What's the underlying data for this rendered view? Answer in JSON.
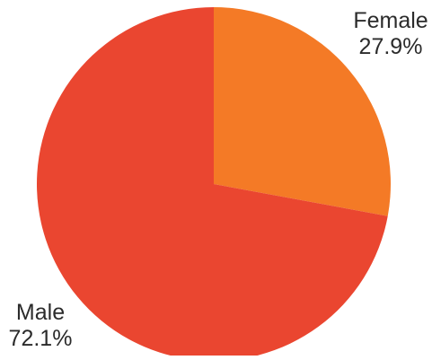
{
  "chart_data": {
    "type": "pie",
    "slices": [
      {
        "label": "Female",
        "value": 27.9,
        "value_label": "27.9%",
        "color": "#f47a26"
      },
      {
        "label": "Male",
        "value": 72.1,
        "value_label": "72.1%",
        "color": "#ea4630"
      }
    ],
    "start_angle": "12 o'clock",
    "direction": "clockwise",
    "legend": "none"
  }
}
